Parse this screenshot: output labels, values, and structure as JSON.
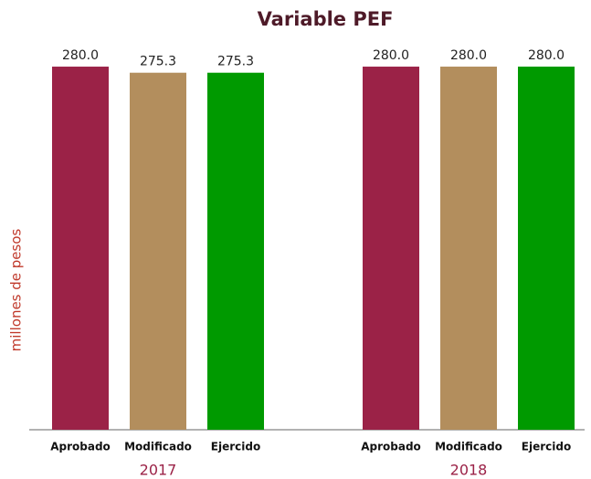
{
  "chart_data": {
    "type": "bar",
    "title": "Variable  PEF",
    "y_label": "millones de pesos",
    "categories": [
      "2017",
      "2018"
    ],
    "series": [
      {
        "name": "Aprobado",
        "color": "#9b2247",
        "values": [
          280,
          280
        ],
        "value_labels": [
          "280.0",
          "280.0"
        ]
      },
      {
        "name": "Modificado",
        "color": "#b38e5d",
        "values": [
          275.3,
          280
        ],
        "value_labels": [
          "275.3",
          "280.0"
        ]
      },
      {
        "name": "Ejercido",
        "color": "#009a00",
        "values": [
          275.3,
          280
        ],
        "value_labels": [
          "275.3",
          "280.0"
        ]
      }
    ],
    "ylim": [
      0,
      300
    ]
  }
}
